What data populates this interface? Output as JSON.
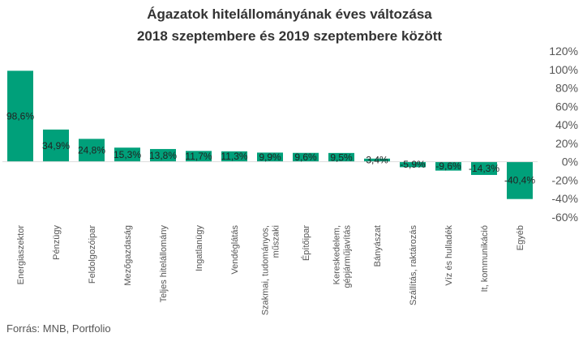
{
  "chart_data": {
    "type": "bar",
    "title": "Ágazatok hitelállományának éves változása",
    "subtitle": "2018 szeptembere és 2019 szeptembere között",
    "categories": [
      [
        "Energiaszektor"
      ],
      [
        "Pénzügy"
      ],
      [
        "Feldolgozóipar"
      ],
      [
        "Mezőgazdaság"
      ],
      [
        "Teljes hitelállomány"
      ],
      [
        "Ingatlanügy"
      ],
      [
        "Vendéglátás"
      ],
      [
        "Szakmai, tudományos,",
        "műszaki"
      ],
      [
        "Építőipar"
      ],
      [
        "Kereskedelem,",
        "gépjárműjavítás"
      ],
      [
        "Bányászat"
      ],
      [
        "Szállítás, raktározás"
      ],
      [
        "Víz és hulladék"
      ],
      [
        "It, kommunikáció"
      ],
      [
        "Egyéb"
      ]
    ],
    "values": [
      98.6,
      34.9,
      24.8,
      15.3,
      13.8,
      11.7,
      11.3,
      9.9,
      9.6,
      9.5,
      3.4,
      -5.9,
      -9.6,
      -14.3,
      -40.4
    ],
    "data_labels": [
      "98,6%",
      "34,9%",
      "24,8%",
      "15,3%",
      "13,8%",
      "11,7%",
      "11,3%",
      "9,9%",
      "9,6%",
      "9,5%",
      "3,4%",
      "-5,9%",
      "-9,6%",
      "-14,3%",
      "-40,4%"
    ],
    "y_ticks": [
      120,
      100,
      80,
      60,
      40,
      20,
      0,
      -20,
      -40,
      -60
    ],
    "y_tick_labels": [
      "120%",
      "100%",
      "80%",
      "60%",
      "40%",
      "20%",
      "0%",
      "-20%",
      "-40%",
      "-60%"
    ],
    "ylim": [
      -60,
      120
    ],
    "y_axis_side": "right",
    "grid": false,
    "bar_color": "#00a07a",
    "xlabel": "",
    "ylabel": ""
  },
  "source": "Forrás: MNB, Portfolio"
}
